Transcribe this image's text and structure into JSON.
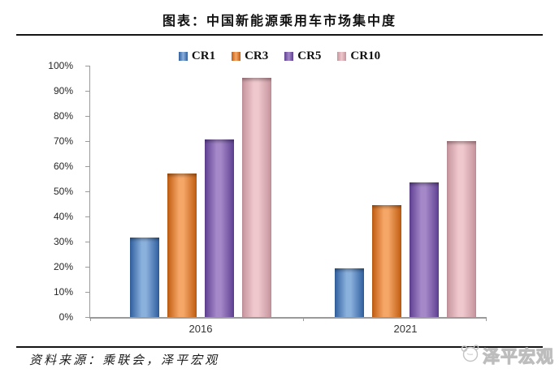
{
  "header": {
    "title": "图表：中国新能源乘用车市场集中度"
  },
  "footer": {
    "source": "资料来源：乘联会，泽平宏观",
    "watermark": "泽平宏观"
  },
  "chart_data": {
    "type": "bar",
    "title": "中国新能源乘用车市场集中度",
    "categories": [
      "2016",
      "2021"
    ],
    "series": [
      {
        "name": "CR1",
        "values": [
          31.5,
          19.5
        ],
        "color": "#6b8ec0",
        "color_edge": "#2f5f9e",
        "color_center": "#8ab0dc"
      },
      {
        "name": "CR3",
        "values": [
          57.0,
          44.5
        ],
        "color": "#e8944e",
        "color_edge": "#c05c10",
        "color_center": "#f5a768"
      },
      {
        "name": "CR5",
        "values": [
          70.5,
          53.5
        ],
        "color": "#8767ad",
        "color_edge": "#5e3f92",
        "color_center": "#a488c8"
      },
      {
        "name": "CR10",
        "values": [
          95.0,
          70.0
        ],
        "color": "#dcb1b9",
        "color_edge": "#c5939c",
        "color_center": "#efc8cd"
      }
    ],
    "ylim": [
      0,
      100
    ],
    "yticks": [
      "0%",
      "10%",
      "20%",
      "30%",
      "40%",
      "50%",
      "60%",
      "70%",
      "80%",
      "90%",
      "100%"
    ],
    "xlabel": "",
    "ylabel": "",
    "grid": false,
    "legend_position": "top",
    "axis_color": "#9a9a9a"
  }
}
